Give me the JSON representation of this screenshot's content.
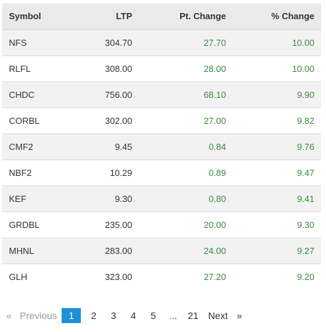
{
  "table": {
    "headers": {
      "symbol": "Symbol",
      "ltp": "LTP",
      "pt_change": "Pt. Change",
      "pct_change": "% Change"
    },
    "rows": [
      {
        "symbol": "NFS",
        "ltp": "304.70",
        "pt_change": "27.70",
        "pct_change": "10.00"
      },
      {
        "symbol": "RLFL",
        "ltp": "308.00",
        "pt_change": "28.00",
        "pct_change": "10.00"
      },
      {
        "symbol": "CHDC",
        "ltp": "756.00",
        "pt_change": "68.10",
        "pct_change": "9.90"
      },
      {
        "symbol": "CORBL",
        "ltp": "302.00",
        "pt_change": "27.00",
        "pct_change": "9.82"
      },
      {
        "symbol": "CMF2",
        "ltp": "9.45",
        "pt_change": "0.84",
        "pct_change": "9.76"
      },
      {
        "symbol": "NBF2",
        "ltp": "10.29",
        "pt_change": "0.89",
        "pct_change": "9.47"
      },
      {
        "symbol": "KEF",
        "ltp": "9.30",
        "pt_change": "0.80",
        "pct_change": "9.41"
      },
      {
        "symbol": "GRDBL",
        "ltp": "235.00",
        "pt_change": "20.00",
        "pct_change": "9.30"
      },
      {
        "symbol": "MHNL",
        "ltp": "283.00",
        "pt_change": "24.00",
        "pct_change": "9.27"
      },
      {
        "symbol": "GLH",
        "ltp": "323.00",
        "pt_change": "27.20",
        "pct_change": "9.20"
      }
    ]
  },
  "pagination": {
    "prev_arrow": "«",
    "prev_label": "Previous",
    "pages": [
      "1",
      "2",
      "3",
      "4",
      "5"
    ],
    "ellipsis": "...",
    "last_page": "21",
    "next_label": "Next",
    "next_arrow": "»",
    "current_page": "1"
  },
  "colors": {
    "positive": "#3a8a3a",
    "header_bg": "#e8eaec",
    "stripe_bg": "#f2f2f2",
    "active_page_bg": "#1e90d6"
  }
}
